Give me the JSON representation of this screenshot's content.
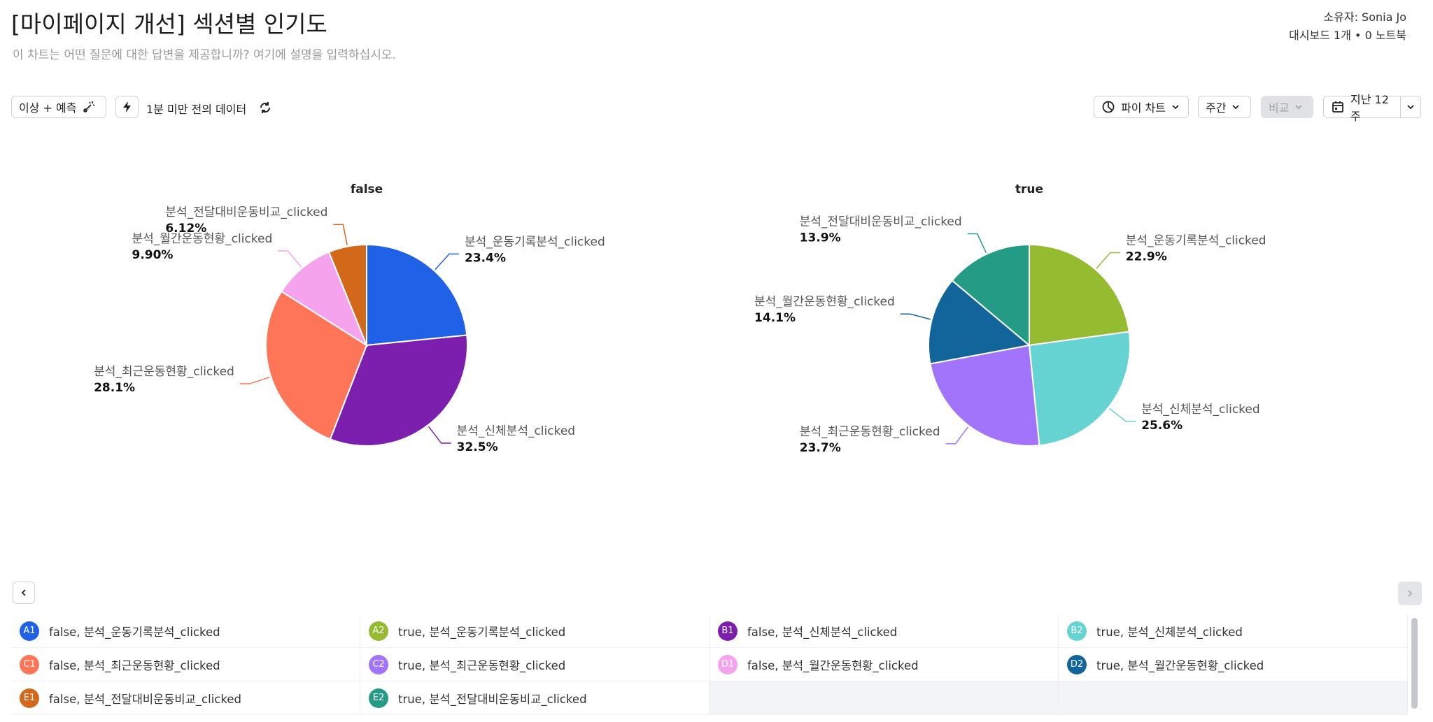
{
  "header": {
    "title": "[마이페이지 개선] 섹션별 인기도",
    "description": "이 차트는 어떤 질문에 대한 답변을 제공합니까? 여기에 설명을 입력하십시오.",
    "owner": "소유자: Sonia Jo",
    "meta": "대시보드 1개 • 0 노트북"
  },
  "toolbar": {
    "anomaly": "이상 + 예측",
    "freshness": "1분 미만 전의 데이터",
    "chart_type": "파이 차트",
    "interval": "주간",
    "compare": "비교",
    "range": "지난 12주"
  },
  "chart_data": [
    {
      "type": "pie",
      "title": "false",
      "categories": [
        "분석_운동기록분석_clicked",
        "분석_신체분석_clicked",
        "분석_최근운동현황_clicked",
        "분석_월간운동현황_clicked",
        "분석_전달대비운동비교_clicked"
      ],
      "values": [
        23.4,
        32.5,
        28.1,
        9.9,
        6.12
      ],
      "value_labels": [
        "23.4%",
        "32.5%",
        "28.1%",
        "9.90%",
        "6.12%"
      ],
      "colors": [
        "#1f62e8",
        "#7c1fae",
        "#ff7557",
        "#f5a3ec",
        "#d2691a"
      ]
    },
    {
      "type": "pie",
      "title": "true",
      "categories": [
        "분석_운동기록분석_clicked",
        "분석_신체분석_clicked",
        "분석_최근운동현황_clicked",
        "분석_월간운동현황_clicked",
        "분석_전달대비운동비교_clicked"
      ],
      "values": [
        22.9,
        25.6,
        23.7,
        14.1,
        13.9
      ],
      "value_labels": [
        "22.9%",
        "25.6%",
        "23.7%",
        "14.1%",
        "13.9%"
      ],
      "colors": [
        "#95bb30",
        "#66d3d3",
        "#a274fb",
        "#12659a",
        "#239b85"
      ]
    }
  ],
  "legend": [
    {
      "badge": "A1",
      "label": "false, 분석_운동기록분석_clicked"
    },
    {
      "badge": "A2",
      "label": "true, 분석_운동기록분석_clicked"
    },
    {
      "badge": "B1",
      "label": "false, 분석_신체분석_clicked"
    },
    {
      "badge": "B2",
      "label": "true, 분석_신체분석_clicked"
    },
    {
      "badge": "C1",
      "label": "false, 분석_최근운동현황_clicked"
    },
    {
      "badge": "C2",
      "label": "true, 분석_최근운동현황_clicked"
    },
    {
      "badge": "D1",
      "label": "false, 분석_월간운동현황_clicked"
    },
    {
      "badge": "D2",
      "label": "true, 분석_월간운동현황_clicked"
    },
    {
      "badge": "E1",
      "label": "false, 분석_전달대비운동비교_clicked"
    },
    {
      "badge": "E2",
      "label": "true, 분석_전달대비운동비교_clicked"
    }
  ]
}
